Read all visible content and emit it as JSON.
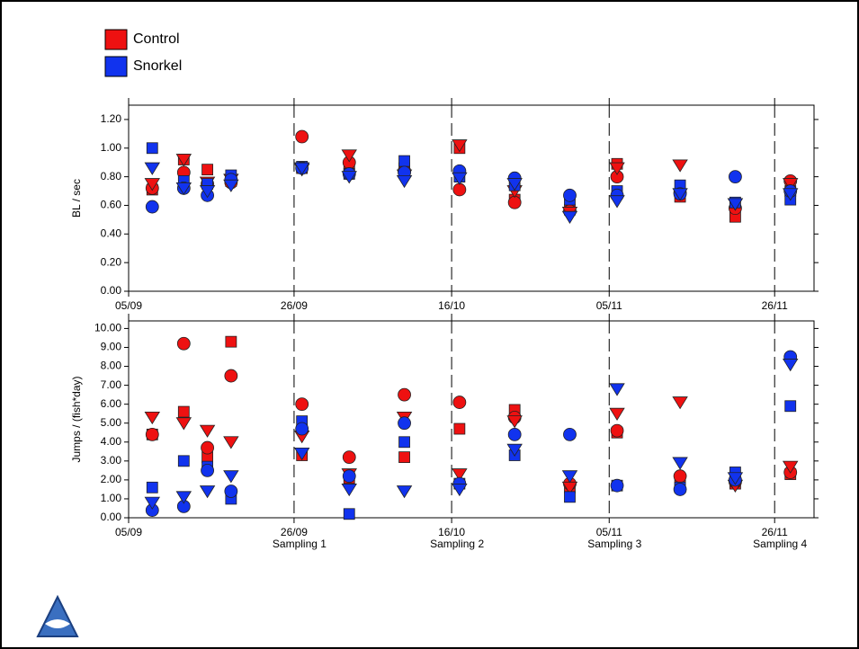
{
  "chart_data": {
    "type": "scatter",
    "x": [
      "08/09",
      "12/09",
      "15/09",
      "18/09",
      "27/09",
      "03/10",
      "10/10",
      "17/10",
      "24/10",
      "31/10",
      "06/11",
      "14/11",
      "21/11",
      "28/11"
    ],
    "xlim": [
      "05/09",
      "01/12"
    ],
    "xticks": [
      "05/09",
      "26/09",
      "16/10",
      "05/11",
      "26/11"
    ],
    "annotations": [
      {
        "x": "26/09",
        "text": "Sampling 1"
      },
      {
        "x": "16/10",
        "text": "Sampling 2"
      },
      {
        "x": "05/11",
        "text": "Sampling 3"
      },
      {
        "x": "26/11",
        "text": "Sampling 4"
      }
    ],
    "series": [
      {
        "name": "Control",
        "color": "#ee1111"
      },
      {
        "name": "Snorkel",
        "color": "#1133ee"
      }
    ],
    "panels": [
      {
        "ylabel": "BL / sec",
        "ylim": [
          0,
          1.3
        ],
        "yticks": [
          {
            "value": 0,
            "label": "0.00"
          },
          {
            "value": 0.2,
            "label": "0.20"
          },
          {
            "value": 0.4,
            "label": "0.40"
          },
          {
            "value": 0.6,
            "label": "0.60"
          },
          {
            "value": 0.8,
            "label": "0.80"
          },
          {
            "value": 1,
            "label": "1.00"
          },
          {
            "value": 1.2,
            "label": "1.20"
          }
        ],
        "values": [
          {
            "square": [
              0.71,
              0.92,
              0.85,
              0.77,
              0.86,
              0.88,
              0.86,
              1.0,
              0.64,
              0.57,
              0.89,
              0.66,
              0.52,
              0.7
            ],
            "circle": [
              0.72,
              0.83,
              0.75,
              0.76,
              1.08,
              0.9,
              0.84,
              0.71,
              0.62,
              0.56,
              0.8,
              0.69,
              0.58,
              0.77
            ],
            "triangle": [
              0.75,
              0.92,
              0.76,
              0.78,
              0.85,
              0.95,
              0.81,
              1.02,
              0.7,
              0.55,
              0.86,
              0.88,
              0.61,
              0.75
            ]
          },
          {
            "square": [
              1.0,
              0.77,
              0.75,
              0.81,
              0.87,
              0.82,
              0.91,
              0.8,
              0.74,
              0.64,
              0.7,
              0.74,
              0.62,
              0.64
            ],
            "circle": [
              0.59,
              0.72,
              0.67,
              0.78,
              0.86,
              0.82,
              0.83,
              0.84,
              0.79,
              0.67,
              0.67,
              0.68,
              0.8,
              0.7
            ],
            "triangle": [
              0.86,
              0.72,
              0.7,
              0.74,
              0.86,
              0.8,
              0.77,
              0.79,
              0.75,
              0.52,
              0.63,
              0.68,
              0.61,
              0.68
            ]
          }
        ]
      },
      {
        "ylabel": "Jumps / (fish*day)",
        "ylim": [
          0,
          10.4
        ],
        "yticks": [
          {
            "value": 0,
            "label": "0.00"
          },
          {
            "value": 1,
            "label": "1.00"
          },
          {
            "value": 2,
            "label": "2.00"
          },
          {
            "value": 3,
            "label": "3.00"
          },
          {
            "value": 4,
            "label": "4.00"
          },
          {
            "value": 5,
            "label": "5.00"
          },
          {
            "value": 6,
            "label": "6.00"
          },
          {
            "value": 7,
            "label": "7.00"
          },
          {
            "value": 8,
            "label": "8.00"
          },
          {
            "value": 9,
            "label": "9.00"
          },
          {
            "value": 10,
            "label": "10.00"
          }
        ],
        "values": [
          {
            "square": [
              4.4,
              5.6,
              3.2,
              9.3,
              3.3,
              2.1,
              3.2,
              4.7,
              5.7,
              1.6,
              4.5,
              1.9,
              1.8,
              2.3
            ],
            "circle": [
              4.4,
              9.2,
              3.7,
              7.5,
              6.0,
              3.2,
              6.5,
              6.1,
              5.3,
              1.8,
              4.6,
              2.2,
              1.9,
              2.4
            ],
            "triangle": [
              5.3,
              5.0,
              4.6,
              4.0,
              4.3,
              2.3,
              5.3,
              2.3,
              5.1,
              1.6,
              5.5,
              6.1,
              1.7,
              2.7
            ]
          },
          {
            "square": [
              1.6,
              3.0,
              2.7,
              1.0,
              5.1,
              0.2,
              4.0,
              1.8,
              3.3,
              1.1,
              1.7,
              1.6,
              2.4,
              5.9
            ],
            "circle": [
              0.4,
              0.6,
              2.5,
              1.4,
              4.7,
              2.2,
              5.0,
              1.8,
              4.4,
              4.4,
              1.7,
              1.5,
              2.0,
              8.5
            ],
            "triangle": [
              0.8,
              1.1,
              1.4,
              2.2,
              3.4,
              1.5,
              1.4,
              1.5,
              3.6,
              2.2,
              6.8,
              2.9,
              2.1,
              8.1
            ]
          }
        ]
      }
    ]
  }
}
